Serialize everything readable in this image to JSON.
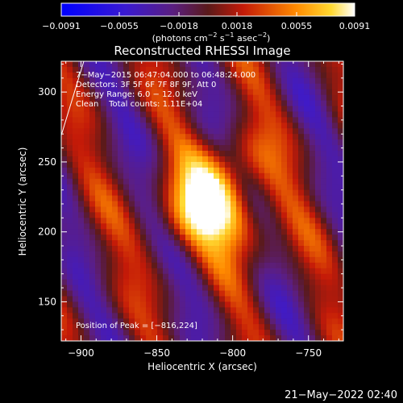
{
  "chart_data": {
    "type": "heatmap",
    "title": "Reconstructed RHESSI Image",
    "xlabel": "Heliocentric X (arcsec)",
    "ylabel": "Heliocentric Y (arcsec)",
    "xlim": [
      -913,
      -727
    ],
    "ylim": [
      122,
      322
    ],
    "x_ticks": [
      -900,
      -850,
      -800,
      -750
    ],
    "x_tick_labels": [
      "−900",
      "−850",
      "−800",
      "−750"
    ],
    "y_ticks": [
      150,
      200,
      250,
      300
    ],
    "y_tick_labels": [
      "150",
      "200",
      "250",
      "300"
    ],
    "colorbar": {
      "min": -0.0091,
      "max": 0.0091,
      "ticks": [
        -0.0091,
        -0.0055,
        -0.0018,
        0.0018,
        0.0055,
        0.0091
      ],
      "tick_labels": [
        "−0.0091",
        "−0.0055",
        "−0.0018",
        "0.0018",
        "0.0055",
        "0.0091"
      ],
      "units_prefix": "(photons cm",
      "units_exp1": "−2",
      "units_mid": " s",
      "units_exp2": "−1",
      "units_mid2": " asec",
      "units_exp3": "−2",
      "units_suffix": ")"
    },
    "peak": {
      "x": -816,
      "y": 224,
      "value": 0.0091
    },
    "annotations": [
      "7−May−2015 06:47:04.000 to 06:48:24.000",
      "Detectors: 3F 5F 6F 7F 8F 9F, Att 0",
      "Energy Range: 6.0 − 12.0 keV",
      "Clean    Total counts: 1.11E+04"
    ],
    "peak_label": "Position of Peak = [−816,224]",
    "timestamp": "21−May−2022 02:40"
  }
}
